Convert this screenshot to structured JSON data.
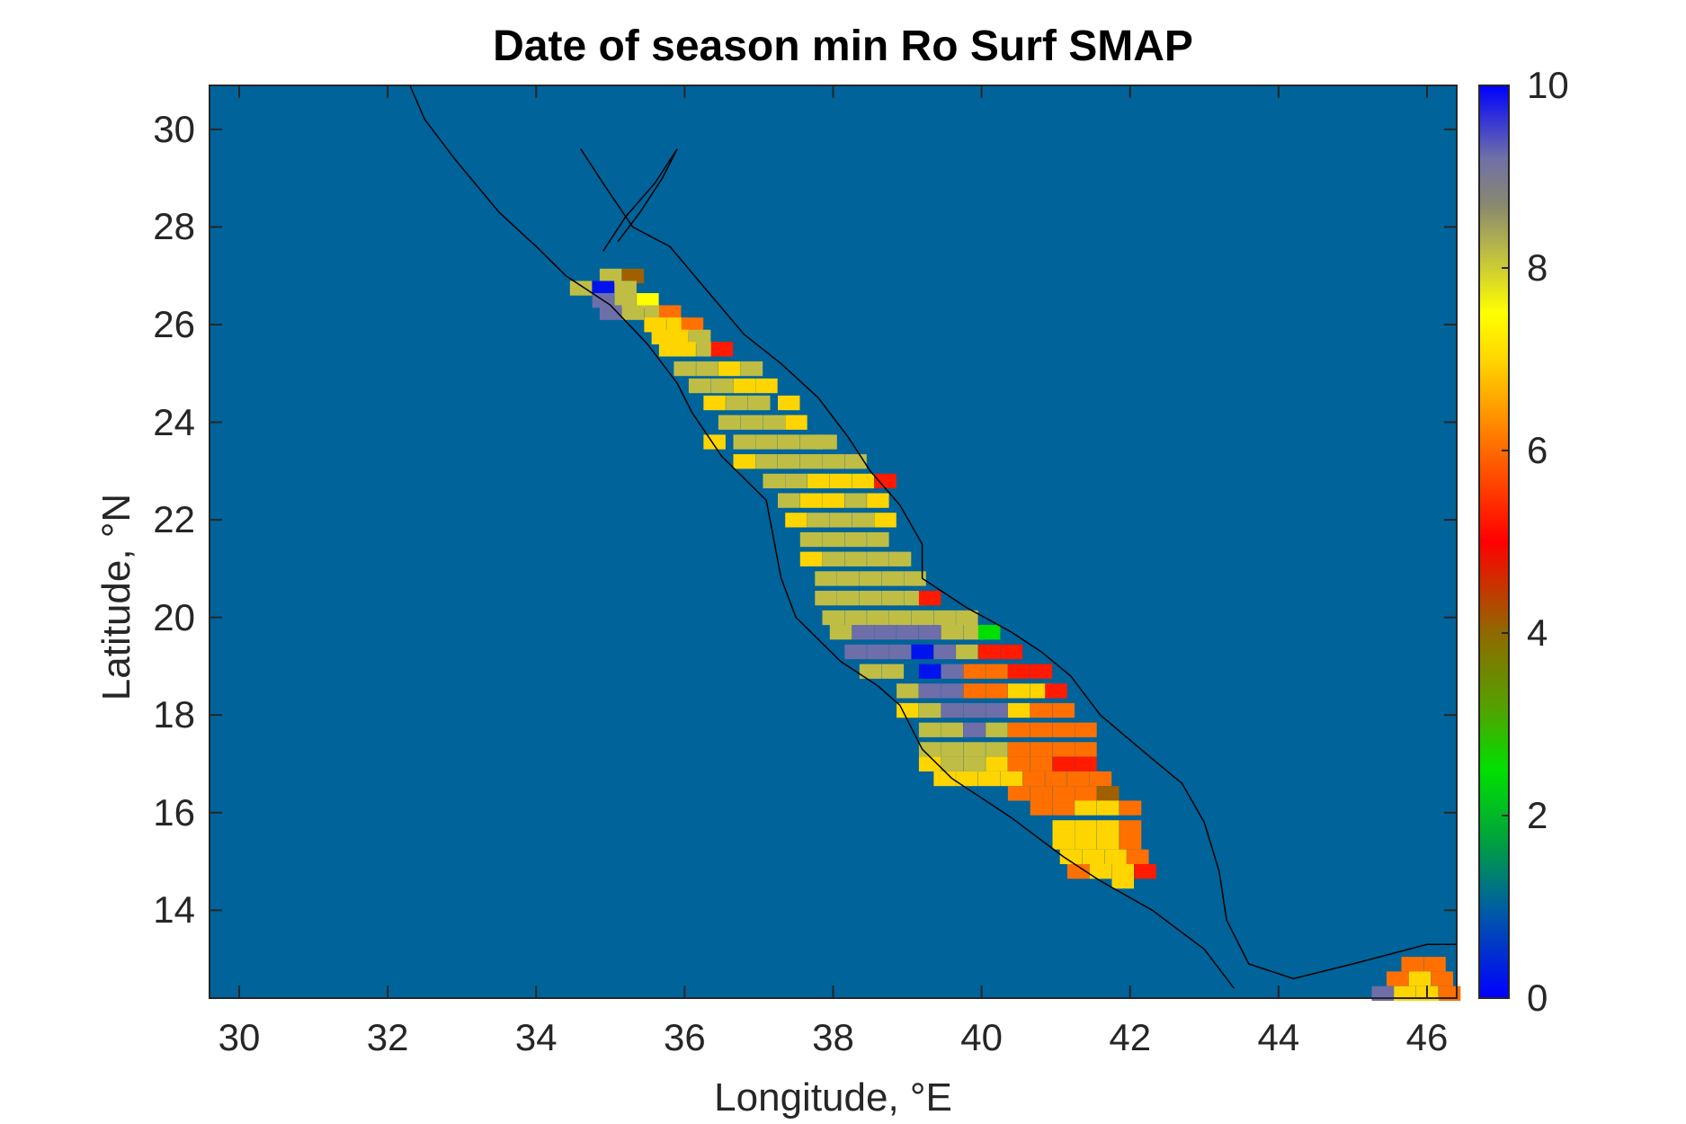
{
  "chart_data": {
    "type": "heatmap",
    "title": "Date of season min Ro Surf SMAP",
    "xlabel": "Longitude, °E",
    "ylabel": "Latitude, °N",
    "xlim": [
      29.6,
      46.4
    ],
    "ylim": [
      12.2,
      30.9
    ],
    "x_ticks": [
      "30",
      "32",
      "34",
      "36",
      "38",
      "40",
      "42",
      "44",
      "46"
    ],
    "y_ticks": [
      "14",
      "16",
      "18",
      "20",
      "22",
      "24",
      "26",
      "28",
      "30"
    ],
    "background_value_color": "#00639a",
    "colorbar": {
      "range": [
        0,
        10
      ],
      "ticks": [
        "0",
        "2",
        "4",
        "6",
        "8",
        "10"
      ]
    },
    "cell_size_deg": 0.25,
    "cells": [
      [
        35.0,
        27.0,
        8.0
      ],
      [
        35.3,
        27.0,
        4.3
      ],
      [
        34.6,
        26.75,
        8.0
      ],
      [
        34.9,
        26.75,
        0.2
      ],
      [
        35.2,
        26.75,
        8.0
      ],
      [
        34.9,
        26.5,
        9.0
      ],
      [
        35.2,
        26.5,
        8.0
      ],
      [
        35.5,
        26.5,
        7.5
      ],
      [
        35.0,
        26.25,
        9.0
      ],
      [
        35.3,
        26.25,
        8.0
      ],
      [
        35.6,
        26.25,
        8.0
      ],
      [
        35.8,
        26.25,
        6.2
      ],
      [
        35.6,
        26.0,
        7.2
      ],
      [
        35.9,
        26.0,
        7.2
      ],
      [
        36.1,
        26.0,
        6.2
      ],
      [
        35.7,
        25.75,
        7.2
      ],
      [
        35.9,
        25.75,
        7.2
      ],
      [
        36.2,
        25.75,
        8.0
      ],
      [
        35.8,
        25.5,
        7.2
      ],
      [
        36.0,
        25.5,
        7.2
      ],
      [
        36.3,
        25.5,
        8.0
      ],
      [
        36.5,
        25.5,
        5.2
      ],
      [
        36.0,
        25.1,
        8.0
      ],
      [
        36.3,
        25.1,
        8.0
      ],
      [
        36.6,
        25.1,
        7.2
      ],
      [
        36.9,
        25.1,
        8.0
      ],
      [
        36.2,
        24.75,
        8.0
      ],
      [
        36.5,
        24.75,
        8.0
      ],
      [
        36.8,
        24.75,
        7.2
      ],
      [
        37.1,
        24.75,
        7.2
      ],
      [
        36.4,
        24.4,
        7.2
      ],
      [
        36.7,
        24.4,
        8.0
      ],
      [
        37.0,
        24.4,
        8.0
      ],
      [
        37.4,
        24.4,
        7.2
      ],
      [
        36.6,
        24.0,
        8.0
      ],
      [
        36.9,
        24.0,
        8.0
      ],
      [
        37.2,
        24.0,
        8.0
      ],
      [
        37.5,
        24.0,
        7.2
      ],
      [
        36.4,
        23.6,
        7.2
      ],
      [
        36.8,
        23.6,
        8.0
      ],
      [
        37.1,
        23.6,
        8.0
      ],
      [
        37.4,
        23.6,
        8.0
      ],
      [
        37.7,
        23.6,
        8.0
      ],
      [
        37.9,
        23.6,
        8.0
      ],
      [
        36.8,
        23.2,
        7.2
      ],
      [
        37.1,
        23.2,
        8.0
      ],
      [
        37.4,
        23.2,
        8.0
      ],
      [
        37.7,
        23.2,
        8.0
      ],
      [
        38.0,
        23.2,
        8.0
      ],
      [
        38.3,
        23.2,
        8.0
      ],
      [
        37.2,
        22.8,
        8.0
      ],
      [
        37.5,
        22.8,
        8.0
      ],
      [
        37.8,
        22.8,
        7.2
      ],
      [
        38.1,
        22.8,
        7.2
      ],
      [
        38.4,
        22.8,
        7.2
      ],
      [
        38.7,
        22.8,
        5.2
      ],
      [
        37.4,
        22.4,
        8.0
      ],
      [
        37.7,
        22.4,
        7.2
      ],
      [
        38.0,
        22.4,
        7.2
      ],
      [
        38.3,
        22.4,
        8.0
      ],
      [
        38.6,
        22.4,
        7.2
      ],
      [
        37.5,
        22.0,
        7.2
      ],
      [
        37.8,
        22.0,
        8.0
      ],
      [
        38.1,
        22.0,
        8.0
      ],
      [
        38.4,
        22.0,
        8.0
      ],
      [
        38.7,
        22.0,
        7.2
      ],
      [
        37.7,
        21.6,
        8.0
      ],
      [
        38.0,
        21.6,
        8.0
      ],
      [
        38.3,
        21.6,
        8.0
      ],
      [
        38.6,
        21.6,
        8.0
      ],
      [
        37.7,
        21.2,
        7.2
      ],
      [
        38.0,
        21.2,
        8.0
      ],
      [
        38.3,
        21.2,
        8.0
      ],
      [
        38.6,
        21.2,
        8.0
      ],
      [
        38.9,
        21.2,
        8.0
      ],
      [
        37.9,
        20.8,
        8.0
      ],
      [
        38.2,
        20.8,
        8.0
      ],
      [
        38.5,
        20.8,
        8.0
      ],
      [
        38.8,
        20.8,
        8.0
      ],
      [
        39.1,
        20.8,
        8.0
      ],
      [
        37.9,
        20.4,
        8.0
      ],
      [
        38.2,
        20.4,
        8.0
      ],
      [
        38.5,
        20.4,
        8.0
      ],
      [
        38.8,
        20.4,
        8.0
      ],
      [
        39.1,
        20.4,
        8.0
      ],
      [
        39.3,
        20.4,
        5.2
      ],
      [
        38.0,
        20.0,
        8.0
      ],
      [
        38.3,
        20.0,
        8.0
      ],
      [
        38.6,
        20.0,
        8.0
      ],
      [
        38.9,
        20.0,
        8.0
      ],
      [
        39.2,
        20.0,
        8.0
      ],
      [
        39.5,
        20.0,
        8.0
      ],
      [
        39.8,
        20.0,
        8.0
      ],
      [
        38.1,
        19.7,
        8.0
      ],
      [
        38.4,
        19.7,
        9.0
      ],
      [
        38.7,
        19.7,
        9.0
      ],
      [
        39.0,
        19.7,
        9.0
      ],
      [
        39.3,
        19.7,
        9.0
      ],
      [
        39.6,
        19.7,
        8.0
      ],
      [
        39.9,
        19.7,
        8.0
      ],
      [
        40.1,
        19.7,
        2.5
      ],
      [
        38.3,
        19.3,
        9.0
      ],
      [
        38.6,
        19.3,
        9.0
      ],
      [
        38.9,
        19.3,
        9.0
      ],
      [
        39.2,
        19.3,
        0.2
      ],
      [
        39.5,
        19.3,
        9.0
      ],
      [
        39.8,
        19.3,
        8.0
      ],
      [
        40.1,
        19.3,
        5.2
      ],
      [
        40.4,
        19.3,
        5.2
      ],
      [
        38.5,
        18.9,
        8.0
      ],
      [
        38.8,
        18.9,
        8.0
      ],
      [
        39.3,
        18.9,
        0.2
      ],
      [
        39.6,
        18.9,
        9.0
      ],
      [
        39.9,
        18.9,
        6.2
      ],
      [
        40.2,
        18.9,
        6.2
      ],
      [
        40.5,
        18.9,
        5.2
      ],
      [
        40.8,
        18.9,
        5.2
      ],
      [
        39.0,
        18.5,
        8.0
      ],
      [
        39.3,
        18.5,
        9.0
      ],
      [
        39.6,
        18.5,
        9.0
      ],
      [
        39.9,
        18.5,
        6.2
      ],
      [
        40.2,
        18.5,
        6.2
      ],
      [
        40.5,
        18.5,
        7.2
      ],
      [
        40.8,
        18.5,
        7.2
      ],
      [
        41.0,
        18.5,
        5.2
      ],
      [
        39.0,
        18.1,
        7.2
      ],
      [
        39.3,
        18.1,
        8.0
      ],
      [
        39.6,
        18.1,
        9.0
      ],
      [
        39.9,
        18.1,
        9.0
      ],
      [
        40.2,
        18.1,
        9.0
      ],
      [
        40.5,
        18.1,
        7.2
      ],
      [
        40.8,
        18.1,
        6.2
      ],
      [
        41.1,
        18.1,
        6.2
      ],
      [
        39.3,
        17.7,
        8.0
      ],
      [
        39.6,
        17.7,
        8.0
      ],
      [
        39.9,
        17.7,
        9.0
      ],
      [
        40.2,
        17.7,
        8.0
      ],
      [
        40.5,
        17.7,
        6.2
      ],
      [
        40.8,
        17.7,
        6.2
      ],
      [
        41.1,
        17.7,
        6.2
      ],
      [
        41.4,
        17.7,
        6.2
      ],
      [
        39.3,
        17.3,
        8.0
      ],
      [
        39.6,
        17.3,
        8.0
      ],
      [
        39.9,
        17.3,
        8.0
      ],
      [
        40.2,
        17.3,
        8.0
      ],
      [
        40.5,
        17.3,
        6.2
      ],
      [
        40.8,
        17.3,
        6.2
      ],
      [
        41.1,
        17.3,
        6.2
      ],
      [
        41.4,
        17.3,
        6.2
      ],
      [
        39.3,
        17.0,
        7.2
      ],
      [
        39.6,
        17.0,
        8.0
      ],
      [
        39.9,
        17.0,
        8.0
      ],
      [
        40.2,
        17.0,
        7.2
      ],
      [
        40.5,
        17.0,
        6.2
      ],
      [
        40.8,
        17.0,
        6.2
      ],
      [
        41.1,
        17.0,
        5.2
      ],
      [
        41.4,
        17.0,
        5.2
      ],
      [
        39.5,
        16.7,
        7.2
      ],
      [
        39.8,
        16.7,
        7.2
      ],
      [
        40.1,
        16.7,
        7.2
      ],
      [
        40.4,
        16.7,
        7.2
      ],
      [
        40.7,
        16.7,
        6.2
      ],
      [
        41.0,
        16.7,
        6.2
      ],
      [
        41.3,
        16.7,
        6.2
      ],
      [
        41.6,
        16.7,
        6.2
      ],
      [
        40.5,
        16.4,
        6.2
      ],
      [
        40.8,
        16.4,
        6.2
      ],
      [
        41.1,
        16.4,
        6.2
      ],
      [
        41.4,
        16.4,
        6.2
      ],
      [
        41.7,
        16.4,
        4.3
      ],
      [
        40.8,
        16.1,
        6.2
      ],
      [
        41.1,
        16.1,
        6.2
      ],
      [
        41.4,
        16.1,
        7.2
      ],
      [
        41.7,
        16.1,
        7.2
      ],
      [
        42.0,
        16.1,
        6.2
      ],
      [
        41.1,
        15.7,
        7.2
      ],
      [
        41.4,
        15.7,
        7.2
      ],
      [
        41.7,
        15.7,
        7.2
      ],
      [
        42.0,
        15.7,
        6.2
      ],
      [
        41.1,
        15.4,
        7.2
      ],
      [
        41.4,
        15.4,
        7.2
      ],
      [
        41.7,
        15.4,
        7.2
      ],
      [
        42.0,
        15.4,
        6.2
      ],
      [
        41.2,
        15.1,
        7.2
      ],
      [
        41.5,
        15.1,
        7.2
      ],
      [
        41.8,
        15.1,
        7.2
      ],
      [
        42.1,
        15.1,
        6.2
      ],
      [
        41.3,
        14.8,
        6.2
      ],
      [
        41.6,
        14.8,
        7.2
      ],
      [
        41.9,
        14.8,
        7.2
      ],
      [
        42.2,
        14.8,
        5.2
      ],
      [
        41.9,
        14.6,
        7.2
      ],
      [
        45.8,
        12.9,
        6.2
      ],
      [
        46.1,
        12.9,
        6.2
      ],
      [
        45.6,
        12.6,
        6.2
      ],
      [
        45.9,
        12.6,
        7.2
      ],
      [
        46.2,
        12.6,
        6.2
      ],
      [
        45.4,
        12.3,
        9.0
      ],
      [
        45.7,
        12.3,
        7.2
      ],
      [
        46.0,
        12.3,
        7.2
      ],
      [
        46.3,
        12.3,
        6.2
      ]
    ]
  }
}
